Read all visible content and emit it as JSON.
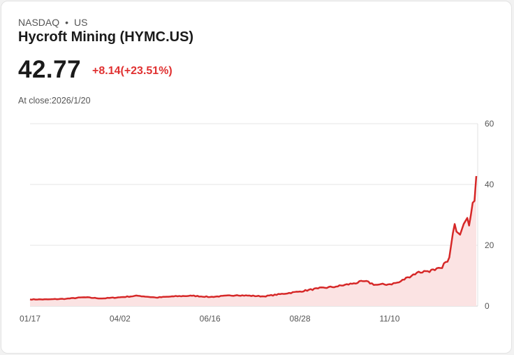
{
  "header": {
    "exchange": "NASDAQ",
    "region": "US",
    "title": "Hycroft Mining (HYMC.US)",
    "price": "42.77",
    "change": "+8.14(+23.51%)",
    "close_info": "At close:2026/1/20"
  },
  "colors": {
    "line": "#d62828",
    "fill": "#fbe3e3",
    "change": "#e03131"
  },
  "chart_data": {
    "type": "area",
    "title": "",
    "xlabel": "",
    "ylabel": "",
    "ylim": [
      0,
      60
    ],
    "yticks": [
      0,
      20,
      40,
      60
    ],
    "ytick_labels": [
      "0",
      "20",
      "40",
      "60"
    ],
    "x_tick_index": [
      0,
      50,
      100,
      150,
      200
    ],
    "xtick_labels": [
      "01/17",
      "04/02",
      "06/16",
      "08/28",
      "11/10"
    ],
    "n_points": 248,
    "anchors": [
      [
        0,
        2.2
      ],
      [
        10,
        2.2
      ],
      [
        20,
        2.4
      ],
      [
        30,
        2.9
      ],
      [
        40,
        2.5
      ],
      [
        50,
        2.9
      ],
      [
        60,
        3.4
      ],
      [
        70,
        2.8
      ],
      [
        80,
        3.2
      ],
      [
        90,
        3.4
      ],
      [
        100,
        3.0
      ],
      [
        115,
        3.6
      ],
      [
        130,
        3.2
      ],
      [
        150,
        4.8
      ],
      [
        160,
        5.8
      ],
      [
        170,
        6.4
      ],
      [
        180,
        7.5
      ],
      [
        186,
        8.2
      ],
      [
        192,
        7.0
      ],
      [
        200,
        7.2
      ],
      [
        205,
        7.8
      ],
      [
        210,
        9.5
      ],
      [
        215,
        11.0
      ],
      [
        220,
        11.5
      ],
      [
        225,
        11.8
      ],
      [
        229,
        12.5
      ],
      [
        231,
        14.5
      ],
      [
        233,
        16.0
      ],
      [
        235,
        24.0
      ],
      [
        236,
        27.0
      ],
      [
        237,
        24.5
      ],
      [
        239,
        23.5
      ],
      [
        241,
        27.0
      ],
      [
        243,
        29.0
      ],
      [
        244,
        26.5
      ],
      [
        245,
        30.0
      ],
      [
        246,
        34.0
      ],
      [
        247,
        34.6
      ],
      [
        248,
        42.77
      ]
    ]
  }
}
